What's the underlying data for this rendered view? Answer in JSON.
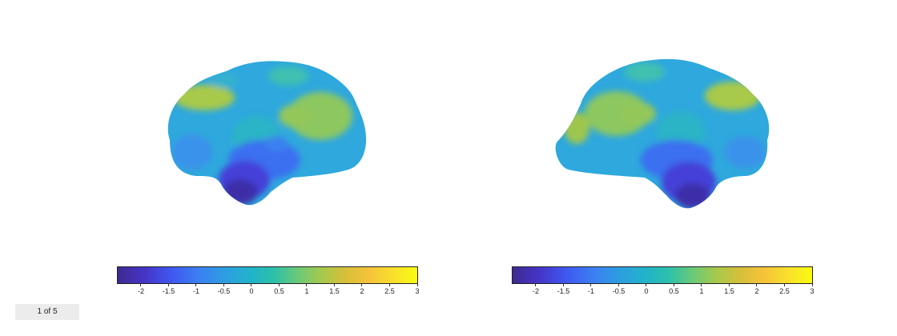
{
  "colorbar": {
    "tick_labels": [
      "-2",
      "-1.5",
      "-1",
      "-0.5",
      "0",
      "0.5",
      "1",
      "1.5",
      "2",
      "2.5",
      "3"
    ],
    "tick_values": [
      -2,
      -1.5,
      -1,
      -0.5,
      0,
      0.5,
      1,
      1.5,
      2,
      2.5,
      3
    ],
    "range": [
      -2.42,
      3
    ],
    "colormap": "parula"
  },
  "views": [
    "left-hemisphere-lateral",
    "right-hemisphere-lateral"
  ],
  "pager": {
    "label": "1 of 5"
  }
}
